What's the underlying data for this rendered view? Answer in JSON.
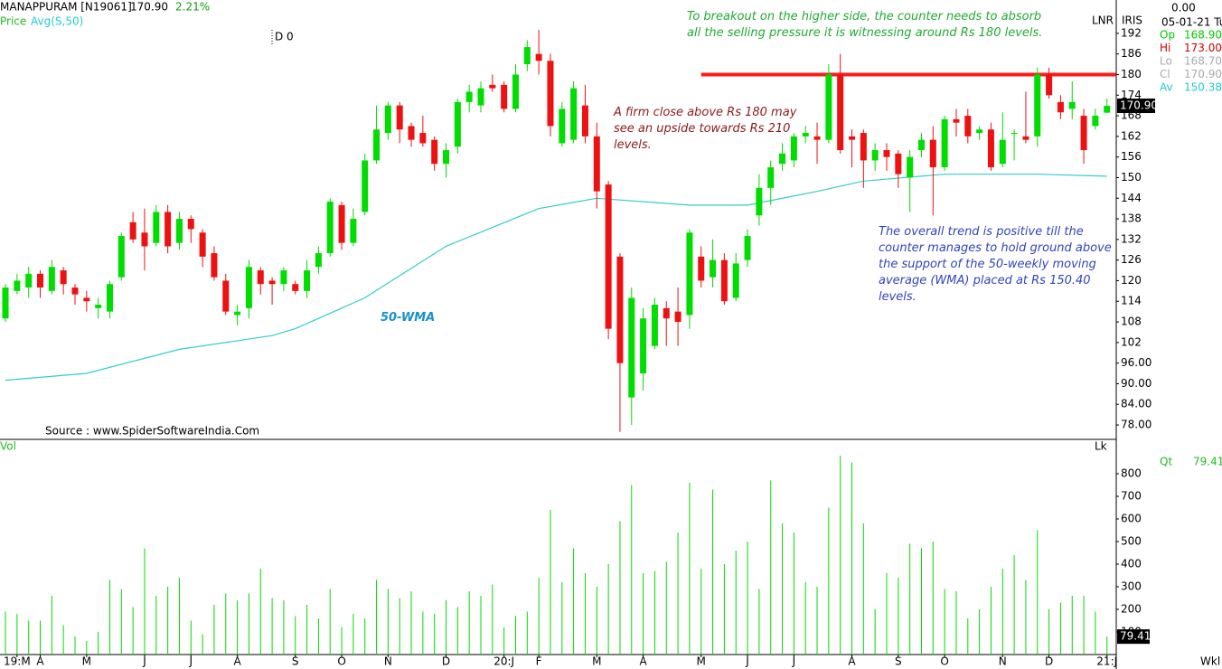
{
  "chart_data": {
    "type": "candlestick",
    "title": "MANAPPURAM [N19061]",
    "price": "170.90",
    "change": "2.21%",
    "price_label": "Price",
    "avg_label": "Avg(S,50)",
    "cursor_label": "D 0",
    "source": "Source : www.SpiderSoftwareIndia.Com",
    "lnr": "LNR",
    "iris": "IRIS",
    "panel_value": "0.00",
    "date": "05-01-21 Tu",
    "info": [
      {
        "label": "Op",
        "value": "168.90",
        "color": "#00cc00"
      },
      {
        "label": "Hi",
        "value": "173.00",
        "color": "#cc0000"
      },
      {
        "label": "Lo",
        "value": "168.70",
        "color": "#aaaaaa"
      },
      {
        "label": "Cl",
        "value": "170.90",
        "color": "#aaaaaa"
      },
      {
        "label": "Av",
        "value": "150.38",
        "color": "#22cccc"
      }
    ],
    "last_box": "170.90",
    "up_color": "#00dd00",
    "down_color": "#ee1111",
    "xlim": [
      -0.47,
      95.8
    ],
    "ylim": [
      73.8,
      201.7
    ],
    "yticks": [
      192,
      186,
      180,
      174,
      168,
      162,
      156,
      150,
      144,
      138,
      132,
      126,
      120,
      114,
      108,
      102,
      {
        "value": 96,
        "label": "96.00"
      },
      {
        "value": 90,
        "label": "90.00"
      },
      {
        "value": 84,
        "label": "84.00"
      },
      {
        "value": 78,
        "label": "78.00"
      }
    ],
    "xticks": [
      {
        "value": 1,
        "label": "19:M"
      },
      {
        "value": 3,
        "label": "A"
      },
      {
        "value": 7,
        "label": "M"
      },
      {
        "value": 12,
        "label": "J"
      },
      {
        "value": 16,
        "label": "J"
      },
      {
        "value": 20,
        "label": "A"
      },
      {
        "value": 25,
        "label": "S"
      },
      {
        "value": 29,
        "label": "O"
      },
      {
        "value": 33,
        "label": "N"
      },
      {
        "value": 38,
        "label": "D"
      },
      {
        "value": 43,
        "label": "20:J"
      },
      {
        "value": 46,
        "label": "F"
      },
      {
        "value": 51,
        "label": "M"
      },
      {
        "value": 55,
        "label": "A"
      },
      {
        "value": 60,
        "label": "M"
      },
      {
        "value": 64,
        "label": "J"
      },
      {
        "value": 68,
        "label": "J"
      },
      {
        "value": 73,
        "label": "A"
      },
      {
        "value": 77,
        "label": "S"
      },
      {
        "value": 81,
        "label": "O"
      },
      {
        "value": 86,
        "label": "N"
      },
      {
        "value": 90,
        "label": "D"
      },
      {
        "value": 95,
        "label": "21:J"
      }
    ],
    "open": [
      109,
      117,
      118,
      122,
      117,
      123,
      118,
      115,
      112,
      111,
      121,
      137,
      134,
      131,
      140,
      131,
      138,
      134,
      128,
      120,
      110,
      112,
      123,
      120,
      119,
      119,
      117,
      124,
      128,
      142,
      131,
      140,
      155,
      163,
      171,
      165,
      163,
      161,
      154,
      159,
      172,
      171,
      177,
      177,
      170,
      183,
      186,
      184,
      160,
      161,
      171,
      162,
      148,
      127,
      86,
      93,
      101,
      112,
      111,
      110,
      127,
      121,
      126,
      115,
      126,
      139,
      147,
      154,
      155,
      162,
      162,
      161,
      180,
      162,
      163,
      155,
      158,
      157,
      150,
      158,
      161,
      153,
      167,
      168,
      163,
      164,
      154,
      163,
      162,
      162,
      180,
      172,
      170,
      168,
      165,
      168.9
    ],
    "high": [
      119,
      122,
      124,
      123,
      126,
      124,
      119,
      117,
      115,
      120,
      134,
      140,
      141,
      142,
      142,
      140,
      139,
      135,
      130,
      122,
      113,
      126,
      124,
      121,
      124,
      120,
      126,
      130,
      144,
      143,
      141,
      157,
      171,
      172,
      172,
      166,
      168,
      162,
      160,
      173,
      177,
      178,
      180,
      178,
      183,
      190,
      193,
      186,
      172,
      178,
      177,
      166,
      149,
      128,
      118,
      112,
      115,
      114,
      118,
      135,
      130,
      132,
      128,
      128,
      135,
      151,
      155,
      160,
      163,
      165,
      166,
      183,
      186,
      164,
      164,
      160,
      160,
      158,
      158,
      163,
      165,
      168,
      170,
      170,
      165,
      166,
      169,
      164,
      175,
      182,
      182,
      174,
      178,
      170,
      170,
      173
    ],
    "low": [
      108,
      116,
      115,
      115,
      116,
      116,
      113,
      111,
      109,
      109,
      120,
      131,
      123,
      130,
      128,
      129,
      131,
      124,
      120,
      110,
      107,
      109,
      116,
      113,
      117,
      116,
      115,
      122,
      127,
      129,
      130,
      139,
      154,
      161,
      160,
      159,
      159,
      152,
      150,
      157,
      169,
      169,
      175,
      169,
      169,
      181,
      180,
      162,
      159,
      160,
      160,
      141,
      103,
      76,
      78,
      88,
      100,
      101,
      101,
      106,
      118,
      118,
      113,
      114,
      124,
      136,
      142,
      152,
      153,
      160,
      154,
      160,
      157,
      153,
      147,
      152,
      152,
      147,
      140,
      156,
      139,
      152,
      162,
      160,
      161,
      152,
      153,
      155,
      160,
      159,
      173,
      167,
      167,
      154,
      164,
      168.7
    ],
    "close": [
      118,
      120,
      122,
      118,
      124,
      119,
      116,
      114,
      113,
      119,
      133,
      132,
      130,
      140,
      130,
      138,
      135,
      127,
      121,
      111,
      111,
      124,
      119,
      119,
      123,
      117,
      123,
      128,
      143,
      131,
      138,
      155,
      164,
      171,
      164,
      161,
      160,
      154,
      158,
      172,
      175,
      176,
      176,
      170,
      180,
      188,
      184,
      165,
      170,
      176,
      162,
      146,
      106,
      96,
      115,
      109,
      113,
      109,
      108,
      134,
      120,
      126,
      114,
      125,
      133,
      147,
      153,
      157,
      162,
      163,
      161,
      180,
      158,
      161,
      155,
      158,
      156,
      151,
      156,
      161,
      153,
      167,
      166,
      162,
      164,
      153,
      161,
      163,
      161,
      180,
      174,
      169,
      172,
      158,
      168,
      170.9
    ],
    "ma": {
      "name": "50-WMA",
      "color": "#33cccc",
      "x": [
        0,
        7,
        15,
        23,
        25,
        31,
        38,
        46,
        51,
        59,
        64,
        70,
        74,
        81,
        89,
        95
      ],
      "values": [
        91,
        93,
        100,
        104,
        106,
        115,
        130,
        141,
        144,
        142,
        142,
        146,
        149,
        151,
        151,
        150.4
      ]
    },
    "hlines": [
      {
        "value": 180,
        "color": "#ff1a1a",
        "from": 60
      }
    ],
    "annotations": [
      {
        "lines": [
          "To breakout on the higher side, the counter needs to absorb",
          "all the selling pressure it is witnessing around Rs 180 levels."
        ],
        "color": "#22aa33"
      },
      {
        "lines": [
          "A firm close above Rs 180 may",
          "see an upside towards Rs 210",
          "levels."
        ],
        "color": "#8b1a1a"
      },
      {
        "lines": [
          "The overall trend is positive till the",
          "counter manages to hold ground above",
          "the support of the 50-weekly moving",
          "average (WMA) placed at Rs 150.40",
          "levels."
        ],
        "color": "#3344bb"
      }
    ],
    "volume": {
      "label": "Vol",
      "unit": "Lk",
      "qt_label": "Qt",
      "qt_value": "79.41",
      "last_box": "79.41",
      "period": "Wkl",
      "color": "#00dd00",
      "ylim": [
        0,
        944
      ],
      "yticks": [
        100,
        200,
        300,
        400,
        500,
        600,
        700,
        800
      ],
      "values": [
        190,
        180,
        150,
        150,
        260,
        130,
        80,
        60,
        100,
        330,
        290,
        210,
        470,
        260,
        300,
        340,
        150,
        90,
        220,
        270,
        240,
        270,
        380,
        250,
        240,
        170,
        220,
        160,
        290,
        120,
        180,
        160,
        330,
        290,
        250,
        280,
        190,
        180,
        240,
        210,
        280,
        260,
        310,
        120,
        170,
        190,
        340,
        640,
        320,
        470,
        360,
        300,
        400,
        590,
        750,
        360,
        370,
        410,
        540,
        760,
        380,
        730,
        400,
        460,
        500,
        290,
        770,
        580,
        540,
        320,
        300,
        650,
        880,
        850,
        580,
        200,
        360,
        340,
        490,
        470,
        500,
        290,
        280,
        160,
        200,
        300,
        380,
        440,
        330,
        550,
        200,
        230,
        260,
        260,
        190,
        79.41
      ]
    }
  }
}
